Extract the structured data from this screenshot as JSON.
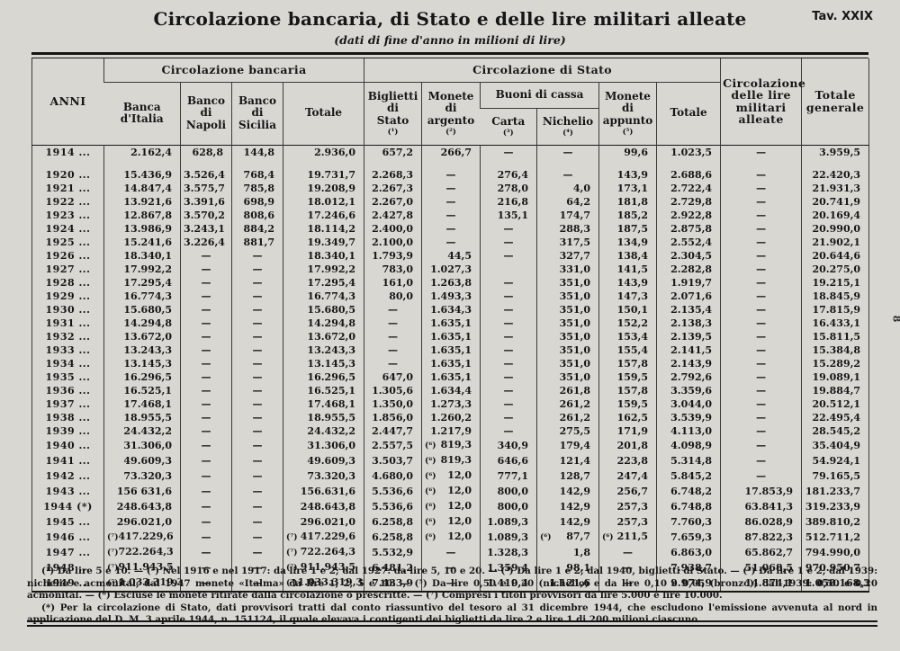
{
  "page": {
    "title": "Circolazione bancaria, di Stato e delle lire militari alleate",
    "subtitle": "(dati di fine d'anno in milioni di lire)",
    "tav": "Tav. XXIX",
    "side_mark": "8"
  },
  "table": {
    "header": {
      "anni": "ANNI",
      "groups": {
        "bancaria": "Circolazione bancaria",
        "stato": "Circolazione di Stato",
        "buoni": "Buoni di cassa"
      },
      "cols": {
        "banca_italia": {
          "label": "Banca\nd'Italia"
        },
        "banco_napoli": {
          "label": "Banco\ndi\nNapoli"
        },
        "banco_sicilia": {
          "label": "Banco\ndi\nSicilia"
        },
        "totale_bancaria": {
          "label": "Totale"
        },
        "biglietti": {
          "label": "Biglietti\ndi\nStato",
          "marker": "(¹)"
        },
        "argento": {
          "label": "Monete\ndi\nargento",
          "marker": "(²)"
        },
        "carta": {
          "label": "Carta",
          "marker": "(³)"
        },
        "nichelio": {
          "label": "Nichelio",
          "marker": "(⁴)"
        },
        "appunto": {
          "label": "Monete\ndi\nappunto",
          "marker": "(⁵)"
        },
        "totale_stato": {
          "label": "Totale"
        },
        "lire_militari": {
          "label": "Circolazione\ndelle lire\nmilitari\nalleate"
        },
        "totale_generale": {
          "label": "Totale\ngenerale"
        }
      }
    },
    "rows": [
      {
        "year": "1914 ...",
        "gap": true,
        "cells": [
          "2.162,4",
          "628,8",
          "144,8",
          "2.936,0",
          "657,2",
          "266,7",
          "—",
          "—",
          "99,6",
          "1.023,5",
          "—",
          "3.959,5"
        ]
      },
      {
        "year": "1920 ...",
        "cells": [
          "15.436,9",
          "3.526,4",
          "768,4",
          "19.731,7",
          "2.268,3",
          "—",
          "276,4",
          "—",
          "143,9",
          "2.688,6",
          "—",
          "22.420,3"
        ]
      },
      {
        "year": "1921 ...",
        "cells": [
          "14.847,4",
          "3.575,7",
          "785,8",
          "19.208,9",
          "2.267,3",
          "—",
          "278,0",
          "4,0",
          "173,1",
          "2.722,4",
          "—",
          "21.931,3"
        ]
      },
      {
        "year": "1922 ...",
        "cells": [
          "13.921,6",
          "3.391,6",
          "698,9",
          "18.012,1",
          "2.267,0",
          "—",
          "216,8",
          "64,2",
          "181,8",
          "2.729,8",
          "—",
          "20.741,9"
        ]
      },
      {
        "year": "1923 ...",
        "cells": [
          "12.867,8",
          "3.570,2",
          "808,6",
          "17.246,6",
          "2.427,8",
          "—",
          "135,1",
          "174,7",
          "185,2",
          "2.922,8",
          "—",
          "20.169,4"
        ]
      },
      {
        "year": "1924 ...",
        "cells": [
          "13.986,9",
          "3.243,1",
          "884,2",
          "18.114,2",
          "2.400,0",
          "—",
          "—",
          "288,3",
          "187,5",
          "2.875,8",
          "—",
          "20.990,0"
        ]
      },
      {
        "year": "1925 ...",
        "cells": [
          "15.241,6",
          "3.226,4",
          "881,7",
          "19.349,7",
          "2.100,0",
          "—",
          "—",
          "317,5",
          "134,9",
          "2.552,4",
          "—",
          "21.902,1"
        ]
      },
      {
        "year": "1926 ...",
        "cells": [
          "18.340,1",
          "—",
          "—",
          "18.340,1",
          "1.793,9",
          "44,5",
          "—",
          "327,7",
          "138,4",
          "2.304,5",
          "—",
          "20.644,6"
        ]
      },
      {
        "year": "1927 ...",
        "cells": [
          "17.992,2",
          "—",
          "—",
          "17.992,2",
          "783,0",
          "1.027,3",
          "",
          "331,0",
          "141,5",
          "2.282,8",
          "—",
          "20.275,0"
        ]
      },
      {
        "year": "1928 ...",
        "cells": [
          "17.295,4",
          "—",
          "—",
          "17.295,4",
          "161,0",
          "1.263,8",
          "—",
          "351,0",
          "143,9",
          "1.919,7",
          "—",
          "19.215,1"
        ]
      },
      {
        "year": "1929 ...",
        "cells": [
          "16.774,3",
          "—",
          "—",
          "16.774,3",
          "80,0",
          "1.493,3",
          "—",
          "351,0",
          "147,3",
          "2.071,6",
          "—",
          "18.845,9"
        ]
      },
      {
        "year": "1930 ...",
        "cells": [
          "15.680,5",
          "—",
          "—",
          "15.680,5",
          "—",
          "1.634,3",
          "—",
          "351,0",
          "150,1",
          "2.135,4",
          "—",
          "17.815,9"
        ]
      },
      {
        "year": "1931 ...",
        "cells": [
          "14.294,8",
          "—",
          "—",
          "14.294,8",
          "—",
          "1.635,1",
          "—",
          "351,0",
          "152,2",
          "2.138,3",
          "—",
          "16.433,1"
        ]
      },
      {
        "year": "1932 ...",
        "cells": [
          "13.672,0",
          "—",
          "—",
          "13.672,0",
          "—",
          "1.635,1",
          "—",
          "351,0",
          "153,4",
          "2.139,5",
          "—",
          "15.811,5"
        ]
      },
      {
        "year": "1933 ...",
        "cells": [
          "13.243,3",
          "—",
          "—",
          "13.243,3",
          "—",
          "1.635,1",
          "—",
          "351,0",
          "155,4",
          "2.141,5",
          "—",
          "15.384,8"
        ]
      },
      {
        "year": "1934 ...",
        "cells": [
          "13.145,3",
          "—",
          "—",
          "13.145,3",
          "—",
          "1.635,1",
          "—",
          "351,0",
          "157,8",
          "2.143,9",
          "—",
          "15.289,2"
        ]
      },
      {
        "year": "1935 ...",
        "cells": [
          "16.296,5",
          "—",
          "—",
          "16.296,5",
          "647,0",
          "1.635,1",
          "—",
          "351,0",
          "159,5",
          "2.792,6",
          "—",
          "19.089,1"
        ]
      },
      {
        "year": "1936 ...",
        "cells": [
          "16.525,1",
          "—",
          "—",
          "16.525,1",
          "1.305,6",
          "1.634,4",
          "—",
          "261,8",
          "157,8",
          "3.359,6",
          "—",
          "19.884,7"
        ]
      },
      {
        "year": "1937 ...",
        "cells": [
          "17.468,1",
          "—",
          "—",
          "17.468,1",
          "1.350,0",
          "1.273,3",
          "—",
          "261,2",
          "159,5",
          "3.044,0",
          "—",
          "20.512,1"
        ]
      },
      {
        "year": "1938 ...",
        "cells": [
          "18.955,5",
          "—",
          "—",
          "18.955,5",
          "1.856,0",
          "1.260,2",
          "—",
          "261,2",
          "162,5",
          "3.539,9",
          "—",
          "22.495,4"
        ]
      },
      {
        "year": "1939 ...",
        "cells": [
          "24.432,2",
          "—",
          "—",
          "24.432,2",
          "2.447,7",
          "1.217,9",
          "—",
          "275,5",
          "171,9",
          "4.113,0",
          "—",
          "28.545,2"
        ]
      },
      {
        "year": "1940 ...",
        "cells": [
          "31.306,0",
          "—",
          "—",
          "31.306,0",
          "2.557,5",
          "(⁶)||819,3",
          "340,9",
          "179,4",
          "201,8",
          "4.098,9",
          "—",
          "35.404,9"
        ]
      },
      {
        "year": "1941 ...",
        "cells": [
          "49.609,3",
          "—",
          "—",
          "49.609,3",
          "3.503,7",
          "(⁶)||819,3",
          "646,6",
          "121,4",
          "223,8",
          "5.314,8",
          "—",
          "54.924,1"
        ]
      },
      {
        "year": "1942 ...",
        "cells": [
          "73.320,3",
          "—",
          "—",
          "73.320,3",
          "4.680,0",
          "(⁶)||12,0",
          "777,1",
          "128,7",
          "247,4",
          "5.845,2",
          "—",
          "79.165,5"
        ]
      },
      {
        "year": "1943 ...",
        "cells": [
          "156 631,6",
          "—",
          "—",
          "156.631,6",
          "5.536,6",
          "(⁶)||12,0",
          "800,0",
          "142,9",
          "256,7",
          "6.748,2",
          "17.853,9",
          "181.233,7"
        ]
      },
      {
        "year": "1944 (*)",
        "cells": [
          "248.643,8",
          "—",
          "—",
          "248.643,8",
          "5.536,6",
          "(⁶)||12,0",
          "800,0",
          "142,9",
          "257,3",
          "6.748,8",
          "63.841,3",
          "319.233,9"
        ]
      },
      {
        "year": "1945 ...",
        "cells": [
          "296.021,0",
          "—",
          "—",
          "296.021,0",
          "6.258,8",
          "(⁶)||12,0",
          "1.089,3",
          "142,9",
          "257,3",
          "7.760,3",
          "86.028,9",
          "389.810,2"
        ]
      },
      {
        "year": "1946 ...",
        "cells": [
          "(⁷)||417.229,6",
          "—",
          "—",
          "(⁷)||417.229,6",
          "6.258,8",
          "(⁶)||12,0",
          "1.089,3",
          "(⁶)||87,7",
          "(⁶)||211,5",
          "7.659,3",
          "87.822,3",
          "512.711,2"
        ]
      },
      {
        "year": "1947 ...",
        "cells": [
          "(⁷)||722.264,3",
          "—",
          "—",
          "(⁷)||722.264,3",
          "5.532,9",
          "—",
          "1.328,3",
          "1,8",
          "—",
          "6.863,0",
          "65.862,7",
          "794.990,0"
        ]
      },
      {
        "year": "1948 ...",
        "cells": [
          "(⁷)||911.943,5",
          "—",
          "—",
          "(⁷)||911.943,5",
          "6.481,2",
          "—",
          "1.359,4",
          "98,1",
          "—",
          "7.938,7",
          "51.068,5",
          "970.950,7"
        ]
      },
      {
        "year": "1949 ...",
        "cells": [
          "(⁷)||1.033.319,3",
          "—",
          "—",
          "(⁷)||1.033.319,3",
          "7.433,9",
          "—",
          "1.419,4",
          "1.121,6",
          "—",
          "9.974,9",
          "14.874,1",
          "1.058.168,3"
        ]
      }
    ]
  },
  "footnotes": {
    "fn1": "(¹) Da lire 5 e 10. — (²) Nel 1916 e nel 1917: da lire 1 e 2; dal 1927: da lire 5, 10 e 20. — (³) Da lire 1 e 2; dal 1940, biglietti di Stato. — (⁴) Da lire 1 e 2; dal 1939: nichelio e acmonital; dal 1947 monete «Italma» da lire 1, 2, 5 e 10. — (⁵) Da lire 0,50 e 0,20 (nichelio) e da lire 0,10 e 0,05 (bronzo); dal 1939: 0,50 e 0,20 acmonital. — (⁶) Escluse le monete ritirate dalla circolazione o prescritte. — (⁷) Compresi i titoli provvisori da lire 5.000 e lire 10.000.",
    "fn2": "(*) Per la circolazione di Stato, dati provvisori tratti dal conto riassuntivo del tesoro al 31 dicembre 1944, che escludono l'emissione avvenuta al nord in applicazione del D. M. 3 aprile 1944, n. 151124, il quale elevava i contigenti dei biglietti da lire 2 e lire 1 di 200 milioni ciascuno."
  }
}
